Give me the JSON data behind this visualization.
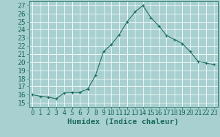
{
  "x": [
    0,
    1,
    2,
    3,
    4,
    5,
    6,
    7,
    8,
    9,
    10,
    11,
    12,
    13,
    14,
    15,
    16,
    17,
    18,
    19,
    20,
    21,
    22,
    23
  ],
  "y": [
    16.0,
    15.8,
    15.7,
    15.5,
    16.2,
    16.3,
    16.3,
    16.7,
    18.4,
    21.3,
    22.2,
    23.4,
    25.0,
    26.2,
    27.0,
    25.5,
    24.5,
    23.3,
    22.8,
    22.3,
    21.3,
    20.1,
    19.9,
    19.7
  ],
  "line_color": "#1a6b5a",
  "marker": "+",
  "bg_color": "#a8d0d0",
  "grid_color": "#c8e8e8",
  "xlabel": "Humidex (Indice chaleur)",
  "ylim": [
    14.5,
    27.5
  ],
  "xlim": [
    -0.5,
    23.5
  ],
  "yticks": [
    15,
    16,
    17,
    18,
    19,
    20,
    21,
    22,
    23,
    24,
    25,
    26,
    27
  ],
  "xticks": [
    0,
    1,
    2,
    3,
    4,
    5,
    6,
    7,
    8,
    9,
    10,
    11,
    12,
    13,
    14,
    15,
    16,
    17,
    18,
    19,
    20,
    21,
    22,
    23
  ],
  "font_color": "#1a6b5a",
  "font_size": 7.0,
  "label_font_size": 8.0
}
